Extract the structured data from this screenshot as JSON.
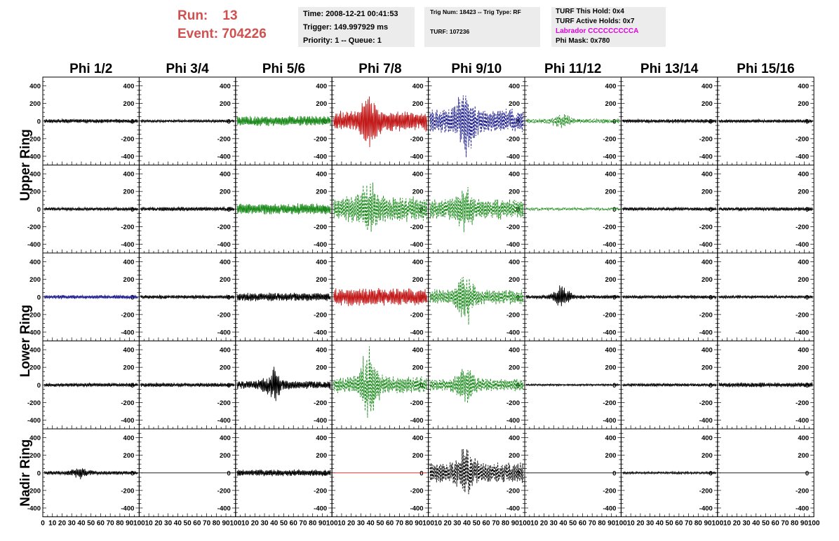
{
  "header": {
    "run_label": "Run:",
    "run_value": "13",
    "event_label": "Event:",
    "event_value": "704226",
    "time": "Time: 2008-12-21 00:41:53",
    "trigger": "Trigger: 149.997929 ms",
    "priority": "Priority: 1 -- Queue: 1",
    "trig_num": "Trig Num: 18423 -- Trig Type: RF",
    "turf": "TURF: 107236",
    "turf_hold": "TURF This Hold: 0x4",
    "turf_active": "TURF Active Holds: 0x7",
    "labrador": "Labrador CCCCCCCCCA",
    "phi_mask": "Phi Mask: 0x780"
  },
  "columns": [
    "Phi 1/2",
    "Phi 3/4",
    "Phi 5/6",
    "Phi 7/8",
    "Phi 9/10",
    "Phi 11/12",
    "Phi 13/14",
    "Phi 15/16"
  ],
  "row_labels": [
    {
      "text": "Upper Ring",
      "span": [
        0,
        1
      ]
    },
    {
      "text": "Lower Ring",
      "span": [
        2,
        3
      ]
    },
    {
      "text": "Nadir Ring",
      "span": [
        4,
        4
      ]
    }
  ],
  "axes": {
    "y_ticks": [
      "400",
      "200",
      "0",
      "-200",
      "-400"
    ],
    "x_ticks_first": [
      "0",
      "10",
      "20",
      "30",
      "40",
      "50",
      "60",
      "70",
      "80",
      "90",
      "100"
    ],
    "x_ticks": [
      "10",
      "20",
      "30",
      "40",
      "50",
      "60",
      "70",
      "80",
      "90",
      "100"
    ],
    "ylim": [
      -500,
      500
    ],
    "xlim": [
      0,
      100
    ]
  },
  "colors": {
    "black": "#000000",
    "green": "#1a8a1a",
    "red": "#c21b1b",
    "blue": "#1a1a8c",
    "run": "#d05050",
    "labrador": "#e000e0",
    "box": "#ececec"
  },
  "chart_data": {
    "type": "line",
    "xlim": [
      0,
      100
    ],
    "ylim": [
      -500,
      500
    ],
    "panels": [
      {
        "row": 0,
        "col": 0,
        "color": "black",
        "style": "solid",
        "amp": 22,
        "burst": false
      },
      {
        "row": 0,
        "col": 1,
        "color": "black",
        "style": "solid",
        "amp": 15,
        "burst": false
      },
      {
        "row": 0,
        "col": 2,
        "color": "green",
        "style": "solid",
        "amp": 55,
        "burst": false
      },
      {
        "row": 0,
        "col": 3,
        "color": "red",
        "style": "solid",
        "amp": 110,
        "burst": true,
        "peak": 330
      },
      {
        "row": 0,
        "col": 4,
        "color": "blue",
        "style": "dashed",
        "amp": 130,
        "burst": true,
        "peak": 420
      },
      {
        "row": 0,
        "col": 5,
        "color": "green",
        "style": "dashed",
        "amp": 25,
        "burst": true,
        "peak": 90
      },
      {
        "row": 0,
        "col": 6,
        "color": "black",
        "style": "solid",
        "amp": 20,
        "burst": false
      },
      {
        "row": 0,
        "col": 7,
        "color": "black",
        "style": "solid",
        "amp": 18,
        "burst": false
      },
      {
        "row": 1,
        "col": 0,
        "color": "black",
        "style": "solid",
        "amp": 18,
        "burst": false
      },
      {
        "row": 1,
        "col": 1,
        "color": "black",
        "style": "solid",
        "amp": 22,
        "burst": false
      },
      {
        "row": 1,
        "col": 2,
        "color": "green",
        "style": "solid",
        "amp": 60,
        "burst": false
      },
      {
        "row": 1,
        "col": 3,
        "color": "green",
        "style": "dashed",
        "amp": 140,
        "burst": true,
        "peak": 380
      },
      {
        "row": 1,
        "col": 4,
        "color": "green",
        "style": "dashed",
        "amp": 110,
        "burst": true,
        "peak": 270
      },
      {
        "row": 1,
        "col": 5,
        "color": "green",
        "style": "dashed",
        "amp": 15,
        "burst": false
      },
      {
        "row": 1,
        "col": 6,
        "color": "black",
        "style": "solid",
        "amp": 18,
        "burst": false
      },
      {
        "row": 1,
        "col": 7,
        "color": "black",
        "style": "solid",
        "amp": 20,
        "burst": false
      },
      {
        "row": 2,
        "col": 0,
        "color": "blue",
        "style": "solid",
        "amp": 20,
        "burst": false
      },
      {
        "row": 2,
        "col": 1,
        "color": "black",
        "style": "solid",
        "amp": 20,
        "burst": false
      },
      {
        "row": 2,
        "col": 2,
        "color": "black",
        "style": "solid",
        "amp": 45,
        "burst": false
      },
      {
        "row": 2,
        "col": 3,
        "color": "red",
        "style": "solid",
        "amp": 95,
        "burst": false
      },
      {
        "row": 2,
        "col": 4,
        "color": "green",
        "style": "dashed",
        "amp": 80,
        "burst": true,
        "peak": 330
      },
      {
        "row": 2,
        "col": 5,
        "color": "black",
        "style": "solid",
        "amp": 20,
        "burst": true,
        "peak": 130
      },
      {
        "row": 2,
        "col": 6,
        "color": "black",
        "style": "solid",
        "amp": 18,
        "burst": false
      },
      {
        "row": 2,
        "col": 7,
        "color": "black",
        "style": "solid",
        "amp": 16,
        "burst": false
      },
      {
        "row": 3,
        "col": 0,
        "color": "black",
        "style": "solid",
        "amp": 20,
        "burst": false
      },
      {
        "row": 3,
        "col": 1,
        "color": "black",
        "style": "solid",
        "amp": 22,
        "burst": false
      },
      {
        "row": 3,
        "col": 2,
        "color": "black",
        "style": "solid",
        "amp": 45,
        "burst": true,
        "peak": 200
      },
      {
        "row": 3,
        "col": 3,
        "color": "green",
        "style": "dashed",
        "amp": 90,
        "burst": true,
        "peak": 450
      },
      {
        "row": 3,
        "col": 4,
        "color": "green",
        "style": "dashed",
        "amp": 70,
        "burst": true,
        "peak": 260
      },
      {
        "row": 3,
        "col": 5,
        "color": "black",
        "style": "solid",
        "amp": 10,
        "burst": false
      },
      {
        "row": 3,
        "col": 6,
        "color": "black",
        "style": "solid",
        "amp": 16,
        "burst": false
      },
      {
        "row": 3,
        "col": 7,
        "color": "black",
        "style": "solid",
        "amp": 25,
        "burst": false
      },
      {
        "row": 4,
        "col": 0,
        "color": "black",
        "style": "solid",
        "amp": 20,
        "burst": true,
        "peak": 70
      },
      {
        "row": 4,
        "col": 1,
        "color": "black",
        "style": "flat",
        "amp": 0,
        "burst": false
      },
      {
        "row": 4,
        "col": 2,
        "color": "black",
        "style": "solid",
        "amp": 35,
        "burst": false
      },
      {
        "row": 4,
        "col": 3,
        "color": "red",
        "style": "flat",
        "amp": 0,
        "burst": false
      },
      {
        "row": 4,
        "col": 4,
        "color": "black",
        "style": "dashed",
        "amp": 110,
        "burst": true,
        "peak": 300
      },
      {
        "row": 4,
        "col": 5,
        "color": "black",
        "style": "flat",
        "amp": 0,
        "burst": false
      },
      {
        "row": 4,
        "col": 6,
        "color": "black",
        "style": "solid",
        "amp": 12,
        "burst": false
      },
      {
        "row": 4,
        "col": 7,
        "color": "black",
        "style": "flat",
        "amp": 0,
        "burst": false
      }
    ]
  }
}
